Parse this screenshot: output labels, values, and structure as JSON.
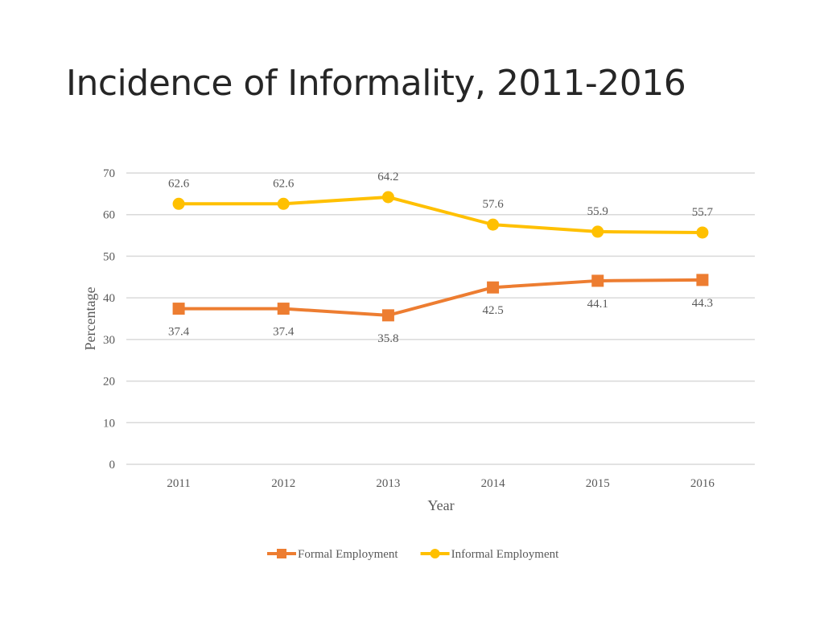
{
  "slide": {
    "title": "Incidence of Informality, 2011-2016"
  },
  "chart_data": {
    "type": "line",
    "title": "",
    "xlabel": "Year",
    "ylabel": "Percentage",
    "categories": [
      "2011",
      "2012",
      "2013",
      "2014",
      "2015",
      "2016"
    ],
    "ylim": [
      0,
      70
    ],
    "yticks": [
      0,
      10,
      20,
      30,
      40,
      50,
      60,
      70
    ],
    "grid": true,
    "legend_position": "bottom",
    "series": [
      {
        "name": "Formal Employment",
        "values": [
          37.4,
          37.4,
          35.8,
          42.5,
          44.1,
          44.3
        ],
        "labels": [
          "37.4",
          "37.4",
          "35.8",
          "42.5",
          "44.1",
          "44.3"
        ],
        "color": "#ed7d31",
        "marker": "square",
        "label_position": "below"
      },
      {
        "name": "Informal Employment",
        "values": [
          62.6,
          62.6,
          64.2,
          57.6,
          55.9,
          55.7
        ],
        "labels": [
          "62.6",
          "62.6",
          "64.2",
          "57.6",
          "55.9",
          "55.7"
        ],
        "color": "#ffc000",
        "marker": "circle",
        "label_position": "above"
      }
    ]
  }
}
